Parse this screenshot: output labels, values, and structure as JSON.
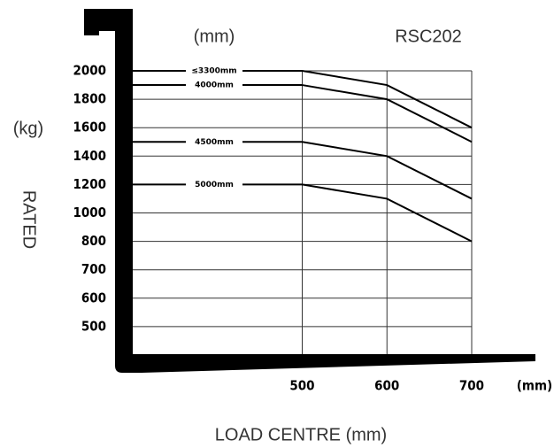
{
  "chart_data": {
    "type": "line",
    "title": "RSC202",
    "x_unit": "(mm)",
    "x_tick_unit": "(mm)",
    "y_unit": "(kg)",
    "y_label": "RATED",
    "x_label": "LOAD CENTRE (mm)",
    "x": [
      500,
      600,
      700
    ],
    "xlim": [
      300,
      700
    ],
    "xticks": [
      500,
      600,
      700
    ],
    "ylim": [
      400,
      2000
    ],
    "yticks": [
      500,
      600,
      700,
      800,
      1000,
      1200,
      1400,
      1600,
      1800,
      2000
    ],
    "grid": true,
    "color": "#000000",
    "series": [
      {
        "name": "≤3300mm",
        "values": [
          2000,
          1900,
          1600
        ]
      },
      {
        "name": "4000mm",
        "values": [
          1900,
          1800,
          1500
        ]
      },
      {
        "name": "4500mm",
        "values": [
          1500,
          1400,
          1100
        ]
      },
      {
        "name": "5000mm",
        "values": [
          1200,
          1100,
          800
        ]
      }
    ]
  }
}
